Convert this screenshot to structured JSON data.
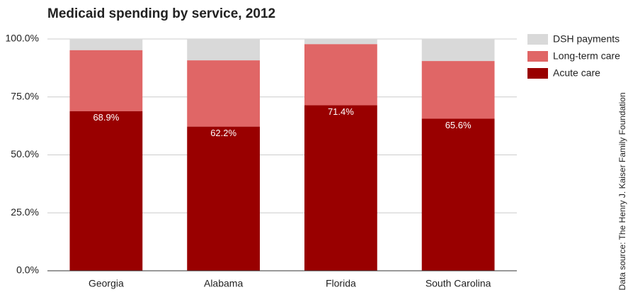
{
  "chart_data": {
    "type": "stacked_bar",
    "title": "Medicaid spending by service, 2012",
    "source": "Data source: The Henry J. Kaiser Family Foundation",
    "categories": [
      "Georgia",
      "Alabama",
      "Florida",
      "South Carolina"
    ],
    "series": [
      {
        "name": "Acute care",
        "color": "#990000",
        "values": [
          68.9,
          62.2,
          71.4,
          65.6
        ],
        "value_labels": [
          "68.9%",
          "62.2%",
          "71.4%",
          "65.6%"
        ]
      },
      {
        "name": "Long-term care",
        "color": "#e06666",
        "values": [
          26.3,
          28.6,
          26.4,
          24.9
        ]
      },
      {
        "name": "DSH payments",
        "color": "#d9d9d9",
        "values": [
          4.8,
          9.2,
          2.2,
          9.5
        ]
      }
    ],
    "ylim": [
      0,
      100
    ],
    "yticks": [
      {
        "value": 0,
        "label": "0.0%"
      },
      {
        "value": 25,
        "label": "25.0%"
      },
      {
        "value": 50,
        "label": "50.0%"
      },
      {
        "value": 75,
        "label": "75.0%"
      },
      {
        "value": 100,
        "label": "100.0%"
      }
    ],
    "grid": true,
    "legend": "right"
  }
}
